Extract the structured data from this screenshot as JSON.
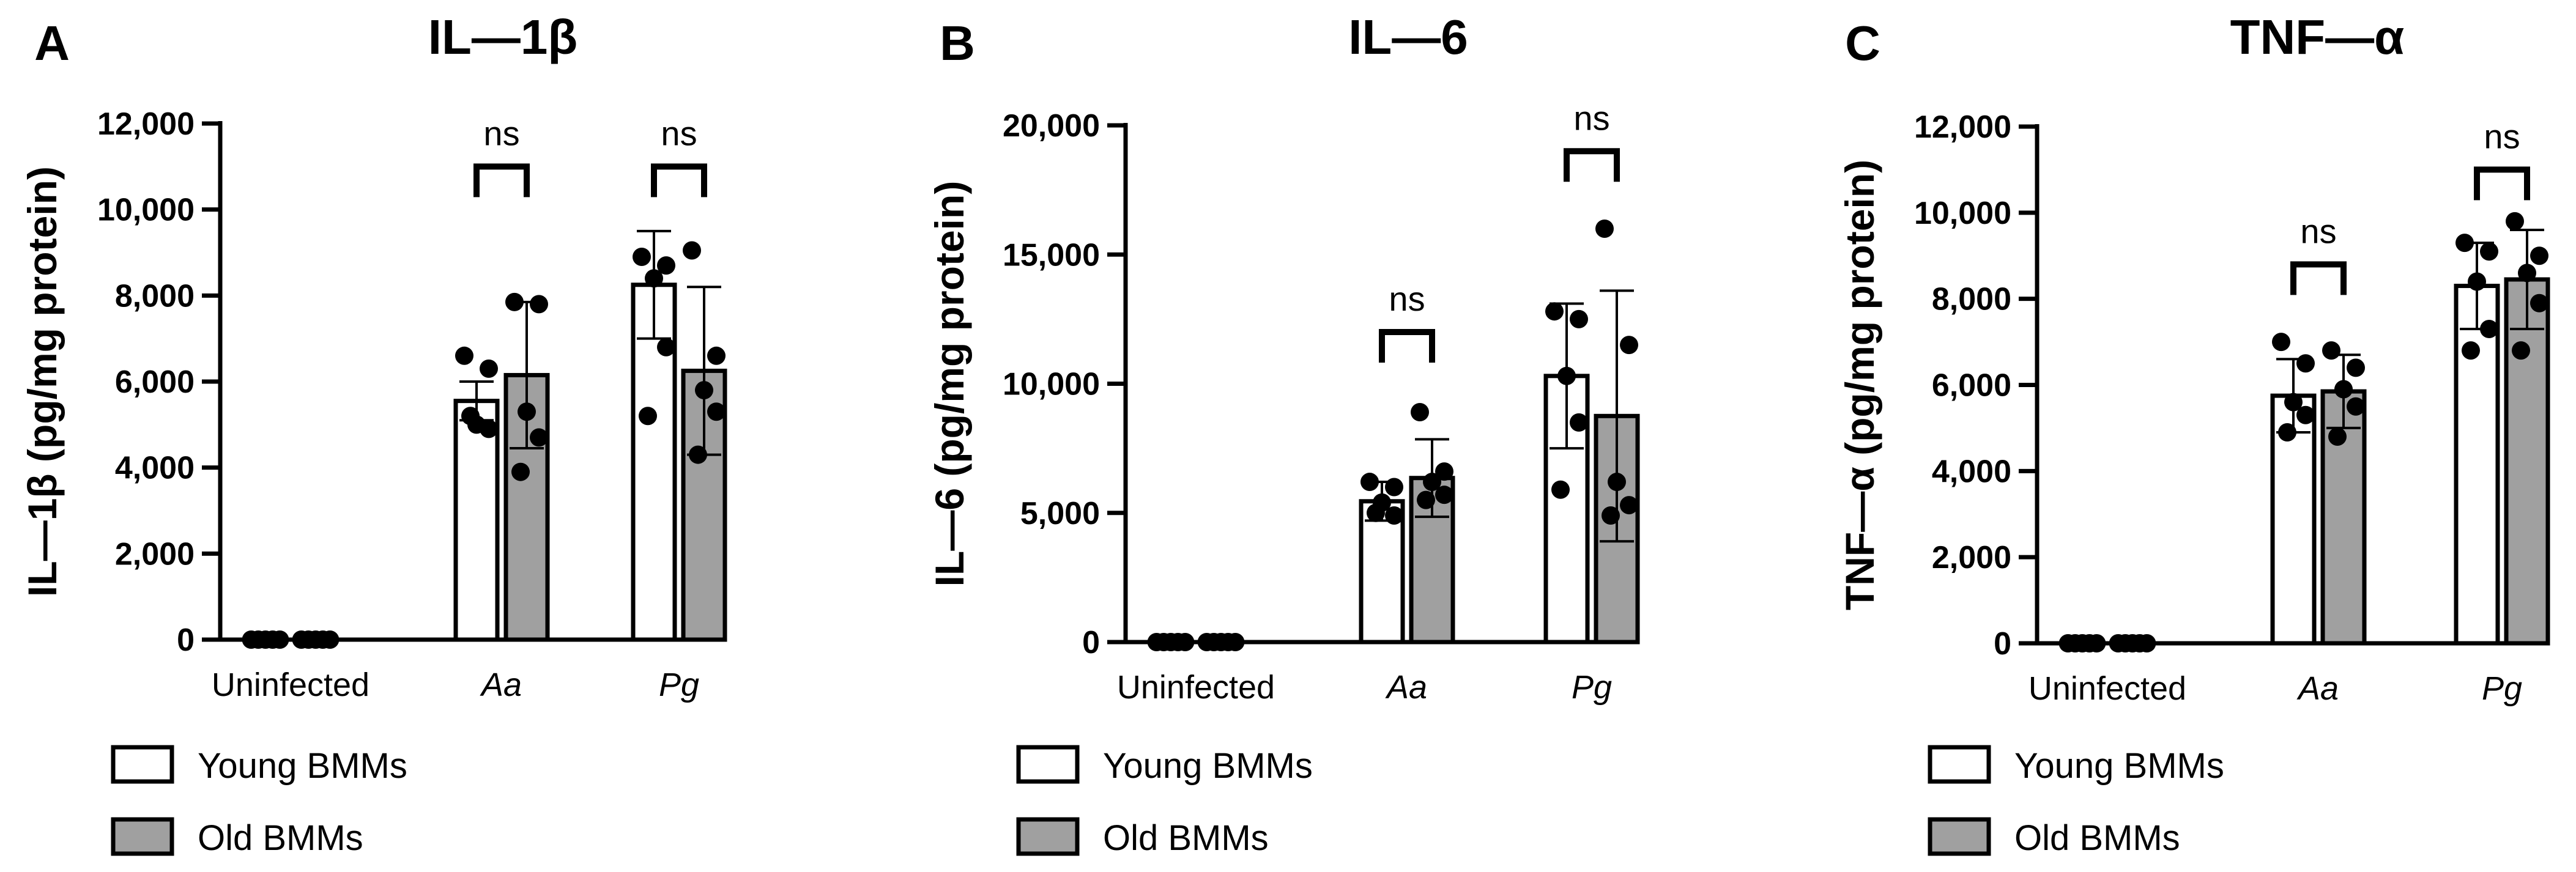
{
  "legend": {
    "young_label": "Young BMMs",
    "old_label": "Old BMMs",
    "young_color": "#ffffff",
    "old_color": "#a0a0a0"
  },
  "chart_data": [
    {
      "type": "bar",
      "panel_label": "A",
      "title": "IL—1β",
      "ylabel": "IL—1β (pg/mg protein)",
      "xlabel": "",
      "categories": [
        "Uninfected",
        "Aa",
        "Pg"
      ],
      "category_italic": [
        false,
        true,
        true
      ],
      "ylim": [
        0,
        12000
      ],
      "yticks": [
        0,
        2000,
        4000,
        6000,
        8000,
        10000,
        12000
      ],
      "ytick_labels": [
        "0",
        "2,000",
        "4,000",
        "6,000",
        "8,000",
        "10,000",
        "12,000"
      ],
      "series": [
        {
          "name": "Young BMMs",
          "values": [
            0,
            5550,
            8250
          ],
          "errors": [
            0,
            450,
            1250
          ],
          "points": [
            [
              0,
              0,
              0,
              0,
              0
            ],
            [
              6600,
              6300,
              5000,
              4900,
              5200
            ],
            [
              8900,
              8700,
              8400,
              6800,
              5200
            ]
          ]
        },
        {
          "name": "Old BMMs",
          "values": [
            0,
            6150,
            6250
          ],
          "errors": [
            0,
            1700,
            1950
          ],
          "points": [
            [
              0,
              0,
              0,
              0,
              0
            ],
            [
              7850,
              7800,
              5300,
              4700,
              3900
            ],
            [
              9050,
              6600,
              5800,
              5300,
              4300
            ]
          ]
        }
      ],
      "annotations": [
        {
          "text": "ns",
          "category": 1,
          "level": 11000
        },
        {
          "text": "ns",
          "category": 2,
          "level": 11000
        }
      ]
    },
    {
      "type": "bar",
      "panel_label": "B",
      "title": "IL—6",
      "ylabel": "IL—6 (pg/mg protein)",
      "xlabel": "",
      "categories": [
        "Uninfected",
        "Aa",
        "Pg"
      ],
      "category_italic": [
        false,
        true,
        true
      ],
      "ylim": [
        0,
        20000
      ],
      "yticks": [
        0,
        5000,
        10000,
        15000,
        20000
      ],
      "ytick_labels": [
        "0",
        "5,000",
        "10,000",
        "15,000",
        "20,000"
      ],
      "series": [
        {
          "name": "Young BMMs",
          "values": [
            0,
            5450,
            10300
          ],
          "errors": [
            0,
            750,
            2800
          ],
          "points": [
            [
              0,
              0,
              0,
              0,
              0
            ],
            [
              6200,
              6000,
              5400,
              4900,
              5000
            ],
            [
              12800,
              12500,
              10300,
              8500,
              5900
            ]
          ]
        },
        {
          "name": "Old BMMs",
          "values": [
            0,
            6350,
            8750
          ],
          "errors": [
            0,
            1500,
            4850
          ],
          "points": [
            [
              0,
              0,
              0,
              0,
              0
            ],
            [
              8900,
              6600,
              6200,
              5700,
              5500
            ],
            [
              16000,
              11500,
              6200,
              5300,
              4900
            ]
          ]
        }
      ],
      "annotations": [
        {
          "text": "ns",
          "category": 1,
          "level": 12000
        },
        {
          "text": "ns",
          "category": 2,
          "level": 19000
        }
      ]
    },
    {
      "type": "bar",
      "panel_label": "C",
      "title": "TNF—α",
      "ylabel": "TNF—α (pg/mg protein)",
      "xlabel": "",
      "categories": [
        "Uninfected",
        "Aa",
        "Pg"
      ],
      "category_italic": [
        false,
        true,
        true
      ],
      "ylim": [
        0,
        12000
      ],
      "yticks": [
        0,
        2000,
        4000,
        6000,
        8000,
        10000,
        12000
      ],
      "ytick_labels": [
        "0",
        "2,000",
        "4,000",
        "6,000",
        "8,000",
        "10,000",
        "12,000"
      ],
      "series": [
        {
          "name": "Young BMMs",
          "values": [
            0,
            5750,
            8300
          ],
          "errors": [
            0,
            850,
            1000
          ],
          "points": [
            [
              0,
              0,
              0,
              0,
              0
            ],
            [
              7000,
              6500,
              5600,
              5300,
              4900
            ],
            [
              9300,
              9100,
              8400,
              7300,
              6800
            ]
          ]
        },
        {
          "name": "Old BMMs",
          "values": [
            0,
            5850,
            8450
          ],
          "errors": [
            0,
            850,
            1150
          ],
          "points": [
            [
              0,
              0,
              0,
              0,
              0
            ],
            [
              6800,
              6400,
              5900,
              5500,
              4800
            ],
            [
              9800,
              9000,
              8600,
              7900,
              6800
            ]
          ]
        }
      ],
      "annotations": [
        {
          "text": "ns",
          "category": 1,
          "level": 8800
        },
        {
          "text": "ns",
          "category": 2,
          "level": 11000
        }
      ]
    }
  ]
}
